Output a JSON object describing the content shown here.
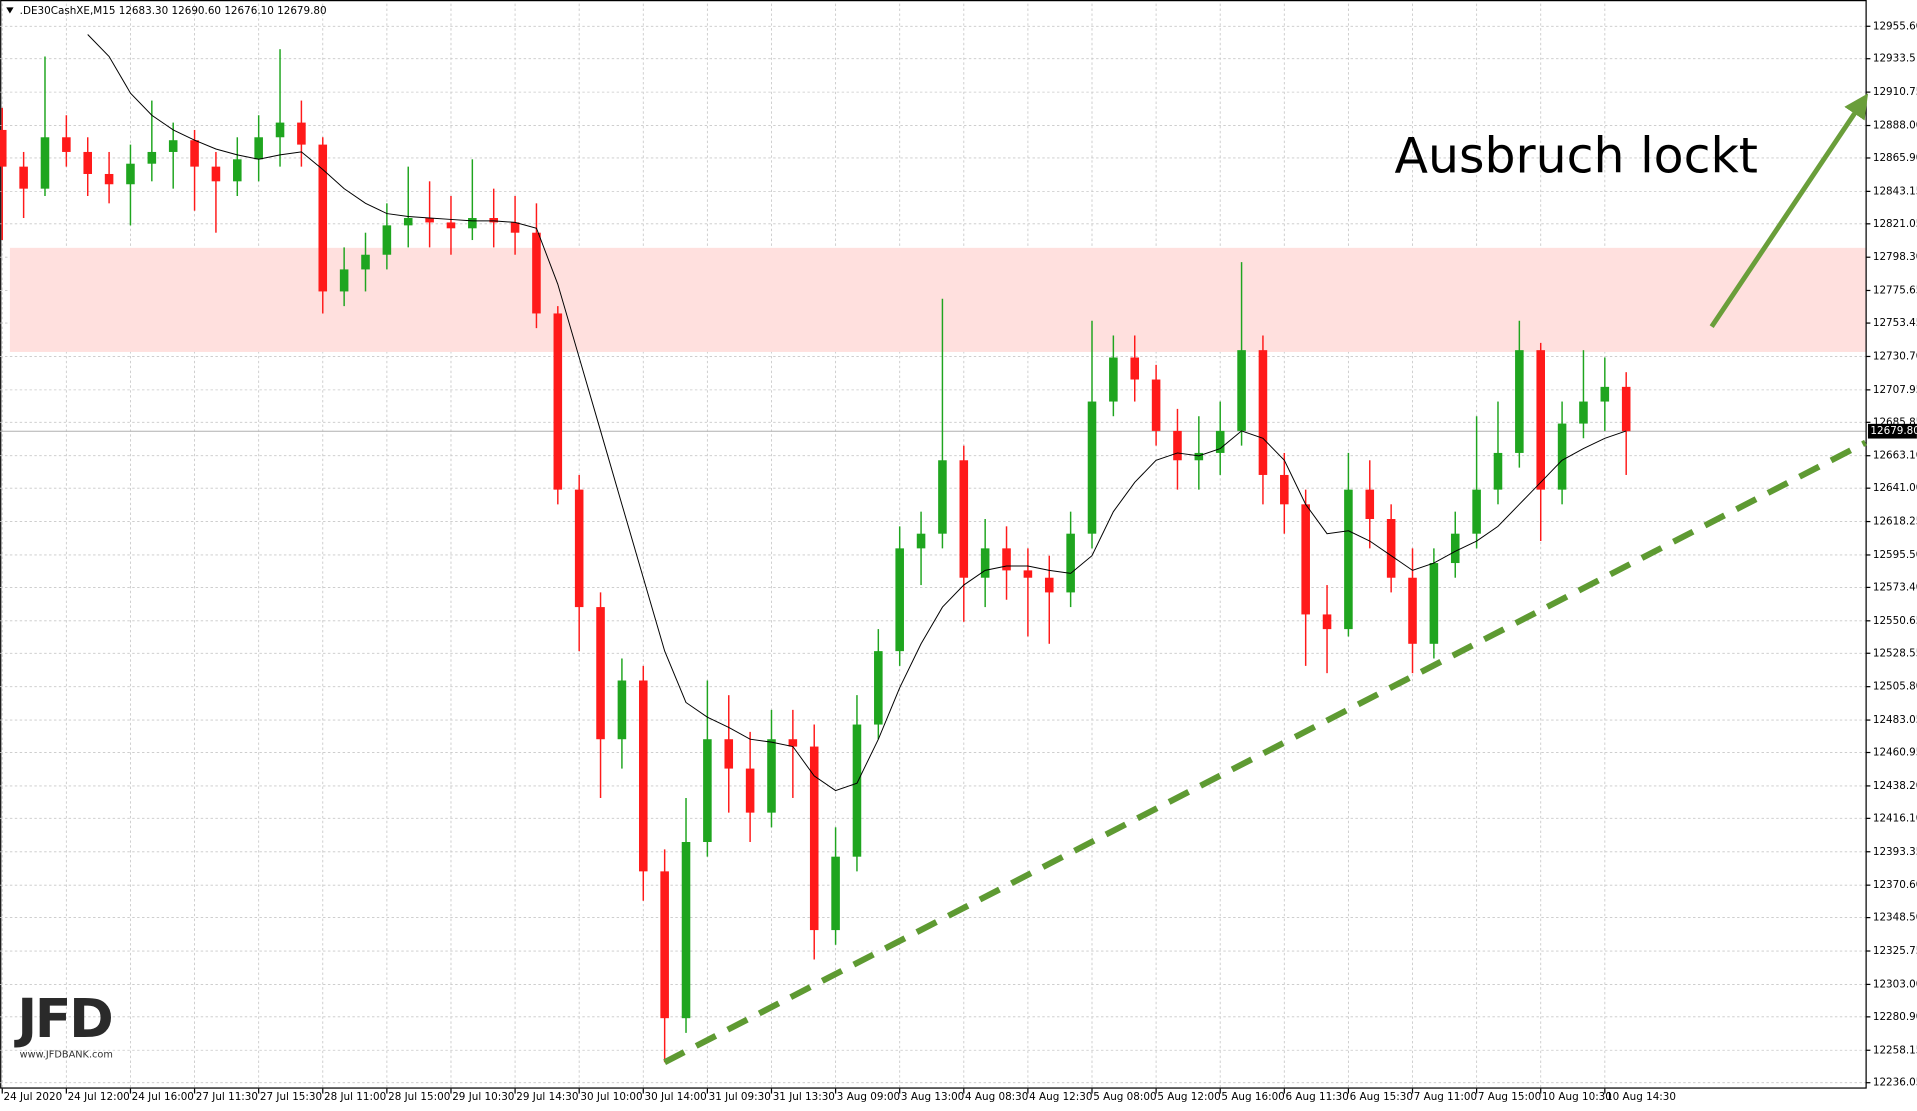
{
  "chart_data": {
    "type": "candlestick",
    "header": ".DE30CashXE,M15  12683.30 12690.60 12676.10 12679.80",
    "categories": [
      "24 Jul 2020",
      null,
      null,
      "24 Jul 12:00",
      null,
      null,
      "24 Jul 16:00",
      null,
      null,
      "27 Jul 11:30",
      null,
      null,
      "27 Jul 15:30",
      null,
      null,
      "28 Jul 11:00",
      null,
      null,
      "28 Jul 15:00",
      null,
      null,
      "29 Jul 10:30",
      null,
      null,
      "29 Jul 14:30",
      null,
      null,
      "30 Jul 10:00",
      null,
      null,
      "30 Jul 14:00",
      null,
      null,
      "31 Jul 09:30",
      null,
      null,
      "31 Jul 13:30",
      null,
      null,
      "3 Aug 09:00",
      null,
      null,
      "3 Aug 13:00",
      null,
      null,
      "4 Aug 08:30",
      null,
      null,
      "4 Aug 12:30",
      null,
      null,
      "5 Aug 08:00",
      null,
      null,
      "5 Aug 12:00",
      null,
      null,
      "5 Aug 16:00",
      null,
      null,
      "6 Aug 11:30",
      null,
      null,
      "6 Aug 15:30",
      null,
      null,
      "7 Aug 11:00",
      null,
      null,
      "7 Aug 15:00",
      null,
      null,
      "10 Aug 10:30",
      null,
      null,
      "10 Aug 14:30",
      null
    ],
    "open": [
      12885,
      12860,
      12845,
      12880,
      12870,
      12855,
      12848,
      12862,
      12870,
      12878,
      12860,
      12850,
      12865,
      12880,
      12890,
      12875,
      12775,
      12790,
      12800,
      12820,
      12825,
      12822,
      12818,
      12825,
      12822,
      12815,
      12760,
      12640,
      12560,
      12470,
      12510,
      12380,
      12280,
      12400,
      12470,
      12450,
      12420,
      12470,
      12465,
      12340,
      12390,
      12480,
      12530,
      12600,
      12610,
      12660,
      12580,
      12600,
      12585,
      12580,
      12570,
      12610,
      12700,
      12730,
      12715,
      12680,
      12660,
      12665,
      12680,
      12735,
      12650,
      12630,
      12555,
      12545,
      12640,
      12620,
      12580,
      12535,
      12590,
      12610,
      12640,
      12665,
      12735,
      12640,
      12685,
      12700,
      12710
    ],
    "high": [
      12900,
      12870,
      12935,
      12895,
      12880,
      12870,
      12875,
      12905,
      12890,
      12885,
      12870,
      12880,
      12895,
      12940,
      12905,
      12880,
      12805,
      12815,
      12835,
      12860,
      12850,
      12840,
      12865,
      12845,
      12840,
      12835,
      12765,
      12650,
      12570,
      12525,
      12520,
      12395,
      12430,
      12510,
      12500,
      12475,
      12490,
      12490,
      12480,
      12410,
      12500,
      12545,
      12615,
      12625,
      12770,
      12670,
      12620,
      12615,
      12600,
      12595,
      12625,
      12755,
      12745,
      12745,
      12725,
      12695,
      12690,
      12700,
      12795,
      12745,
      12665,
      12640,
      12575,
      12665,
      12660,
      12630,
      12600,
      12600,
      12625,
      12690,
      12700,
      12755,
      12740,
      12700,
      12735,
      12730,
      12720
    ],
    "low": [
      12810,
      12825,
      12840,
      12860,
      12840,
      12835,
      12820,
      12850,
      12845,
      12830,
      12815,
      12840,
      12850,
      12860,
      12860,
      12760,
      12765,
      12775,
      12790,
      12805,
      12805,
      12800,
      12810,
      12805,
      12800,
      12750,
      12630,
      12530,
      12430,
      12450,
      12360,
      12250,
      12270,
      12390,
      12420,
      12400,
      12410,
      12430,
      12320,
      12330,
      12380,
      12470,
      12520,
      12575,
      12600,
      12550,
      12560,
      12565,
      12540,
      12535,
      12560,
      12600,
      12690,
      12700,
      12670,
      12640,
      12640,
      12650,
      12670,
      12630,
      12610,
      12520,
      12515,
      12540,
      12600,
      12570,
      12515,
      12525,
      12580,
      12600,
      12630,
      12655,
      12605,
      12630,
      12675,
      12680,
      12650
    ],
    "close": [
      12860,
      12845,
      12880,
      12870,
      12855,
      12848,
      12862,
      12870,
      12878,
      12860,
      12850,
      12865,
      12880,
      12890,
      12875,
      12775,
      12790,
      12800,
      12820,
      12825,
      12822,
      12818,
      12825,
      12822,
      12815,
      12760,
      12640,
      12560,
      12470,
      12510,
      12380,
      12280,
      12400,
      12470,
      12450,
      12420,
      12470,
      12465,
      12340,
      12390,
      12480,
      12530,
      12600,
      12610,
      12660,
      12580,
      12600,
      12585,
      12580,
      12570,
      12610,
      12700,
      12730,
      12715,
      12680,
      12660,
      12665,
      12680,
      12735,
      12650,
      12630,
      12555,
      12545,
      12640,
      12620,
      12580,
      12535,
      12590,
      12610,
      12640,
      12665,
      12735,
      12640,
      12685,
      12700,
      12710,
      12679.8
    ],
    "up_color": "#1fa51f",
    "down_color": "#ff1a1a",
    "ma": {
      "color": "#000000",
      "values": [
        null,
        null,
        null,
        null,
        12950,
        12935,
        12910,
        12895,
        12885,
        12878,
        12872,
        12868,
        12865,
        12868,
        12870,
        12858,
        12845,
        12835,
        12828,
        12826,
        12825,
        12824,
        12823,
        12823,
        12822,
        12818,
        12780,
        12730,
        12680,
        12630,
        12580,
        12530,
        12495,
        12485,
        12478,
        12470,
        12468,
        12465,
        12445,
        12435,
        12440,
        12470,
        12505,
        12535,
        12560,
        12575,
        12585,
        12588,
        12588,
        12585,
        12583,
        12595,
        12625,
        12645,
        12660,
        12665,
        12663,
        12668,
        12680,
        12675,
        12660,
        12630,
        12610,
        12612,
        12605,
        12595,
        12585,
        12590,
        12598,
        12605,
        12615,
        12630,
        12645,
        12660,
        12668,
        12675,
        12680
      ]
    },
    "ylim": [
      12232,
      12971
    ],
    "xlim": [
      -0.1,
      87.2
    ],
    "yticks": [
      {
        "value": 12955.6,
        "label": "12955.60"
      },
      12933.5,
      12910.75,
      {
        "value": 12888,
        "label": "12888.00"
      },
      {
        "value": 12865.9,
        "label": "12865.90"
      },
      12843.15,
      12821.05,
      {
        "value": 12798.3,
        "label": "12798.30"
      },
      12775.65,
      12753.45,
      {
        "value": 12730.7,
        "label": "12730.70"
      },
      12707.95,
      12685.85,
      {
        "value": 12663.1,
        "label": "12663.10"
      },
      {
        "value": 12641,
        "label": "12641.00"
      },
      12618.25,
      {
        "value": 12595.5,
        "label": "12595.50"
      },
      {
        "value": 12573.4,
        "label": "12573.40"
      },
      12550.65,
      12528.55,
      {
        "value": 12505.8,
        "label": "12505.80"
      },
      12483.05,
      12460.95,
      {
        "value": 12438.2,
        "label": "12438.20"
      },
      {
        "value": 12416.1,
        "label": "12416.10"
      },
      12393.35,
      {
        "value": 12370.6,
        "label": "12370.60"
      },
      {
        "value": 12348.5,
        "label": "12348.50"
      },
      12325.75,
      {
        "value": 12303,
        "label": "12303.00"
      },
      {
        "value": 12280.9,
        "label": "12280.90"
      },
      12258.15,
      12236.05
    ],
    "grid": true,
    "zone": {
      "range": [
        12733.8,
        12804.7
      ],
      "color": "#ffe0de"
    },
    "trendline": {
      "points": [
        [
          31,
          12250
        ],
        [
          87.2,
          12672
        ]
      ],
      "color": "#5e9a32"
    },
    "arrow": {
      "points": [
        [
          80,
          12751
        ],
        [
          87,
          12903
        ]
      ],
      "color": "#6a9e3a"
    },
    "annotation": "Ausbruch lockt",
    "last_price": {
      "value": 12679.8,
      "label": "12679.80"
    }
  },
  "logo": {
    "text": "JFD",
    "url": "www.JFDBANK.com"
  }
}
